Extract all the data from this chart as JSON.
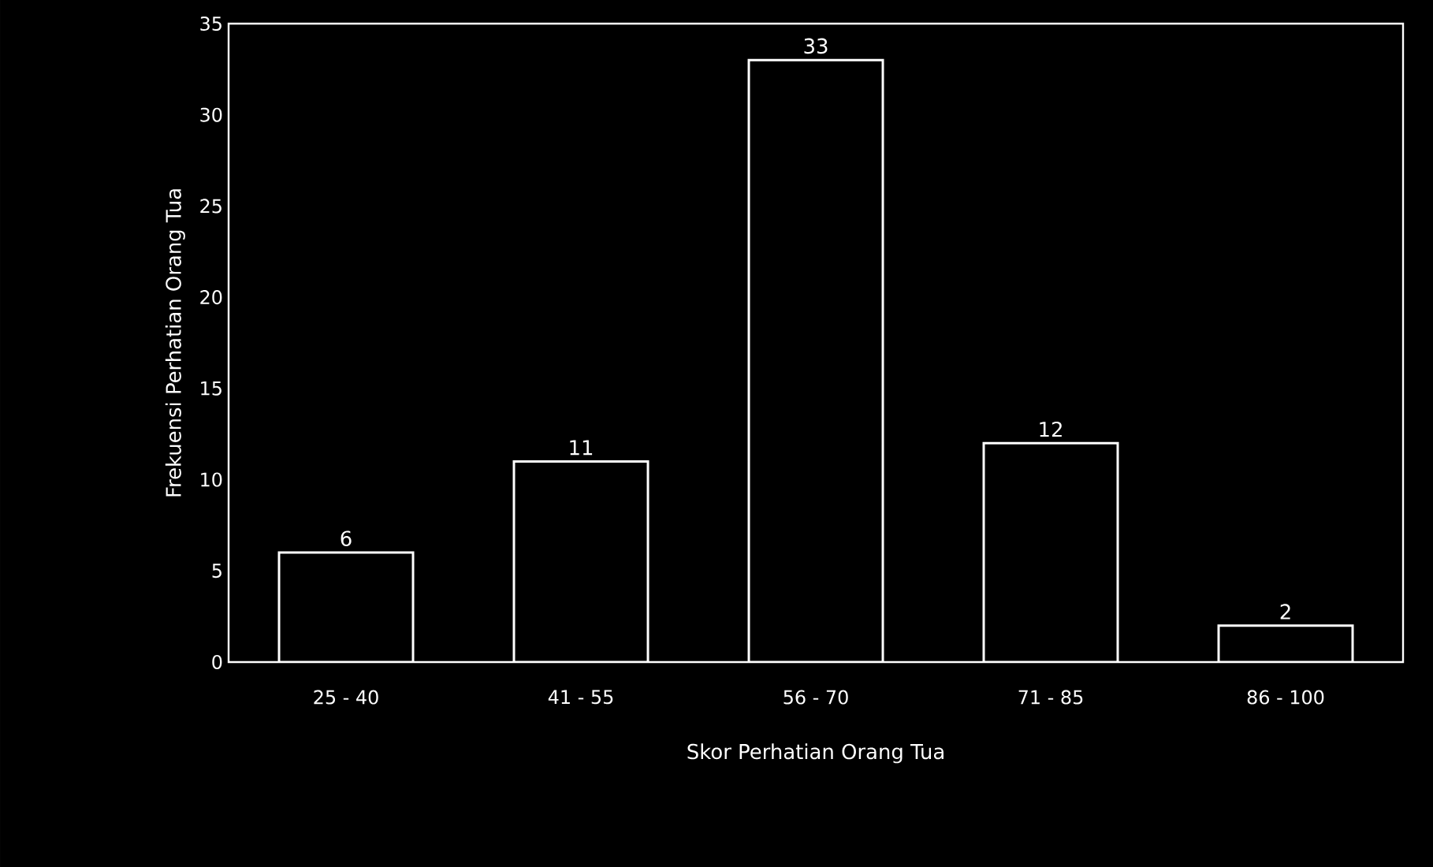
{
  "chart_data": {
    "type": "bar",
    "xlabel": "Skor Perhatian Orang Tua",
    "ylabel": "Frekuensi Perhatian Orang Tua",
    "categories": [
      "25 - 40",
      "41 - 55",
      "56 - 70",
      "71 - 85",
      "86 - 100"
    ],
    "values": [
      6,
      11,
      33,
      12,
      2
    ],
    "color": "#000000",
    "ylim": [
      0,
      35
    ],
    "yticks": [
      0,
      5,
      10,
      15,
      20,
      25,
      30,
      35
    ],
    "data_labels": true,
    "grid": false
  }
}
